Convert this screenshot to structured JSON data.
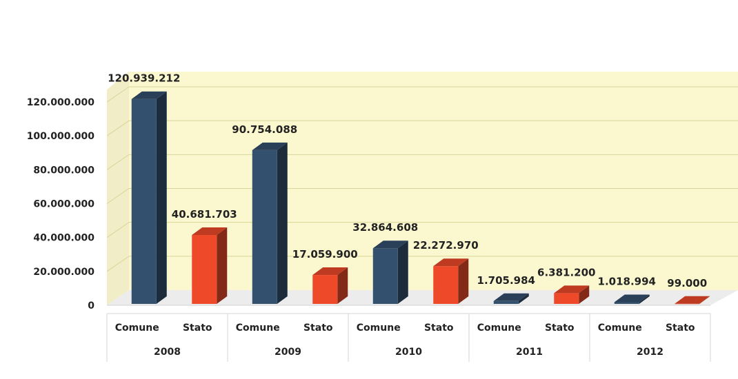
{
  "chart_data": {
    "type": "bar",
    "title": "",
    "xlabel": "",
    "ylabel": "",
    "ylim": [
      0,
      120000000
    ],
    "yticks": [
      "0",
      "20.000.000",
      "40.000.000",
      "60.000.000",
      "80.000.000",
      "100.000.000",
      "120.000.000"
    ],
    "grid": true,
    "groups": [
      "2008",
      "2009",
      "2010",
      "2011",
      "2012"
    ],
    "bars": [
      {
        "group": "2008",
        "category": "Comune",
        "value": 120939212,
        "label": "120.939.212"
      },
      {
        "group": "2008",
        "category": "Stato",
        "value": 40681703,
        "label": "40.681.703"
      },
      {
        "group": "2009",
        "category": "Comune",
        "value": 90754088,
        "label": "90.754.088"
      },
      {
        "group": "2009",
        "category": "Stato",
        "value": 17059900,
        "label": "17.059.900"
      },
      {
        "group": "2010",
        "category": "Comune",
        "value": 32864608,
        "label": "32.864.608"
      },
      {
        "group": "2010",
        "category": "Stato",
        "value": 22272970,
        "label": "22.272.970"
      },
      {
        "group": "2011",
        "category": "Comune",
        "value": 1705984,
        "label": "1.705.984"
      },
      {
        "group": "2011",
        "category": "Stato",
        "value": 6381200,
        "label": "6.381.200"
      },
      {
        "group": "2012",
        "category": "Comune",
        "value": 1018994,
        "label": "1.018.994"
      },
      {
        "group": "2012",
        "category": "Stato",
        "value": 99000,
        "label": "99.000"
      }
    ],
    "colors": {
      "Comune": "#34506f",
      "Stato": "#ee4a2a",
      "back_wall": "#fbf8cf",
      "floor": "#ececec",
      "gridline": "#d9d49a"
    }
  }
}
